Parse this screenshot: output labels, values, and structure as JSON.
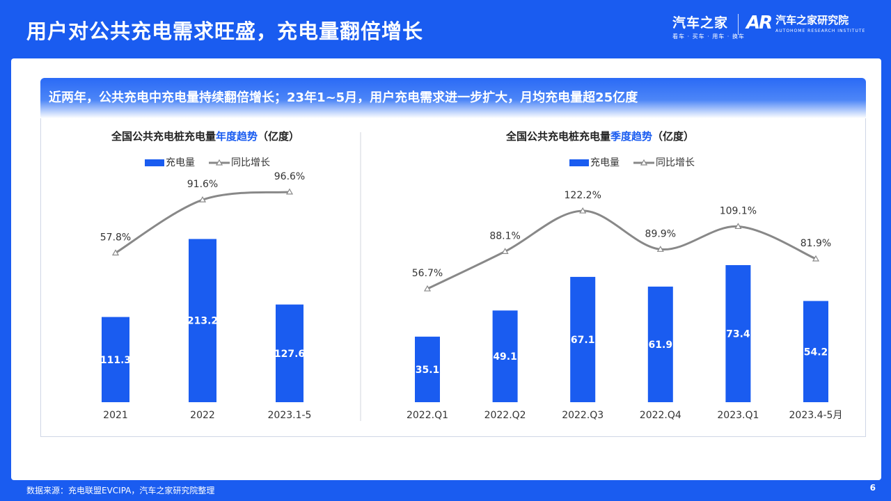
{
  "page": {
    "title": "用户对公共充电需求旺盛，充电量翻倍增长",
    "logo_autohome": "汽车之家",
    "logo_autohome_tagline": "看车 · 买车 · 用车 · 换车",
    "logo_research_mark": "AR",
    "logo_research": "汽车之家研究院",
    "logo_research_en": "AUTOHOME RESEARCH INSTITUTE",
    "banner": "近两年，公共充电中充电量持续翻倍增长；23年1~5月，用户充电需求进一步扩大，月均充电量超25亿度",
    "source": "数据来源：充电联盟EVCIPA，汽车之家研究院整理",
    "page_number": "6"
  },
  "chart_data": [
    {
      "type": "bar",
      "title_prefix": "全国公共充电桩充电量",
      "title_highlight": "年度趋势",
      "title_suffix": "（亿度）",
      "legend": [
        "充电量",
        "同比增长"
      ],
      "categories": [
        "2021",
        "2022",
        "2023.1-5"
      ],
      "series": [
        {
          "name": "充电量",
          "type": "bar",
          "values": [
            111.3,
            213.2,
            127.6
          ]
        },
        {
          "name": "同比增长",
          "type": "line",
          "values": [
            57.8,
            91.6,
            96.6
          ],
          "labels": [
            "57.8%",
            "91.6%",
            "96.6%"
          ]
        }
      ],
      "colors": {
        "bar": "#1a5cf0",
        "line": "#888888",
        "highlight": "#1a5cf0"
      }
    },
    {
      "type": "bar",
      "title_prefix": "全国公共充电桩充电量",
      "title_highlight": "季度趋势",
      "title_suffix": "（亿度）",
      "legend": [
        "充电量",
        "同比增长"
      ],
      "categories": [
        "2022.Q1",
        "2022.Q2",
        "2022.Q3",
        "2022.Q4",
        "2023.Q1",
        "2023.4-5月"
      ],
      "series": [
        {
          "name": "充电量",
          "type": "bar",
          "values": [
            35.1,
            49.1,
            67.1,
            61.9,
            73.4,
            54.2
          ]
        },
        {
          "name": "同比增长",
          "type": "line",
          "values": [
            56.7,
            88.1,
            122.2,
            89.9,
            109.1,
            81.9
          ],
          "labels": [
            "56.7%",
            "88.1%",
            "122.2%",
            "89.9%",
            "109.1%",
            "81.9%"
          ]
        }
      ],
      "colors": {
        "bar": "#1a5cf0",
        "line": "#888888",
        "highlight": "#1a5cf0"
      }
    }
  ]
}
